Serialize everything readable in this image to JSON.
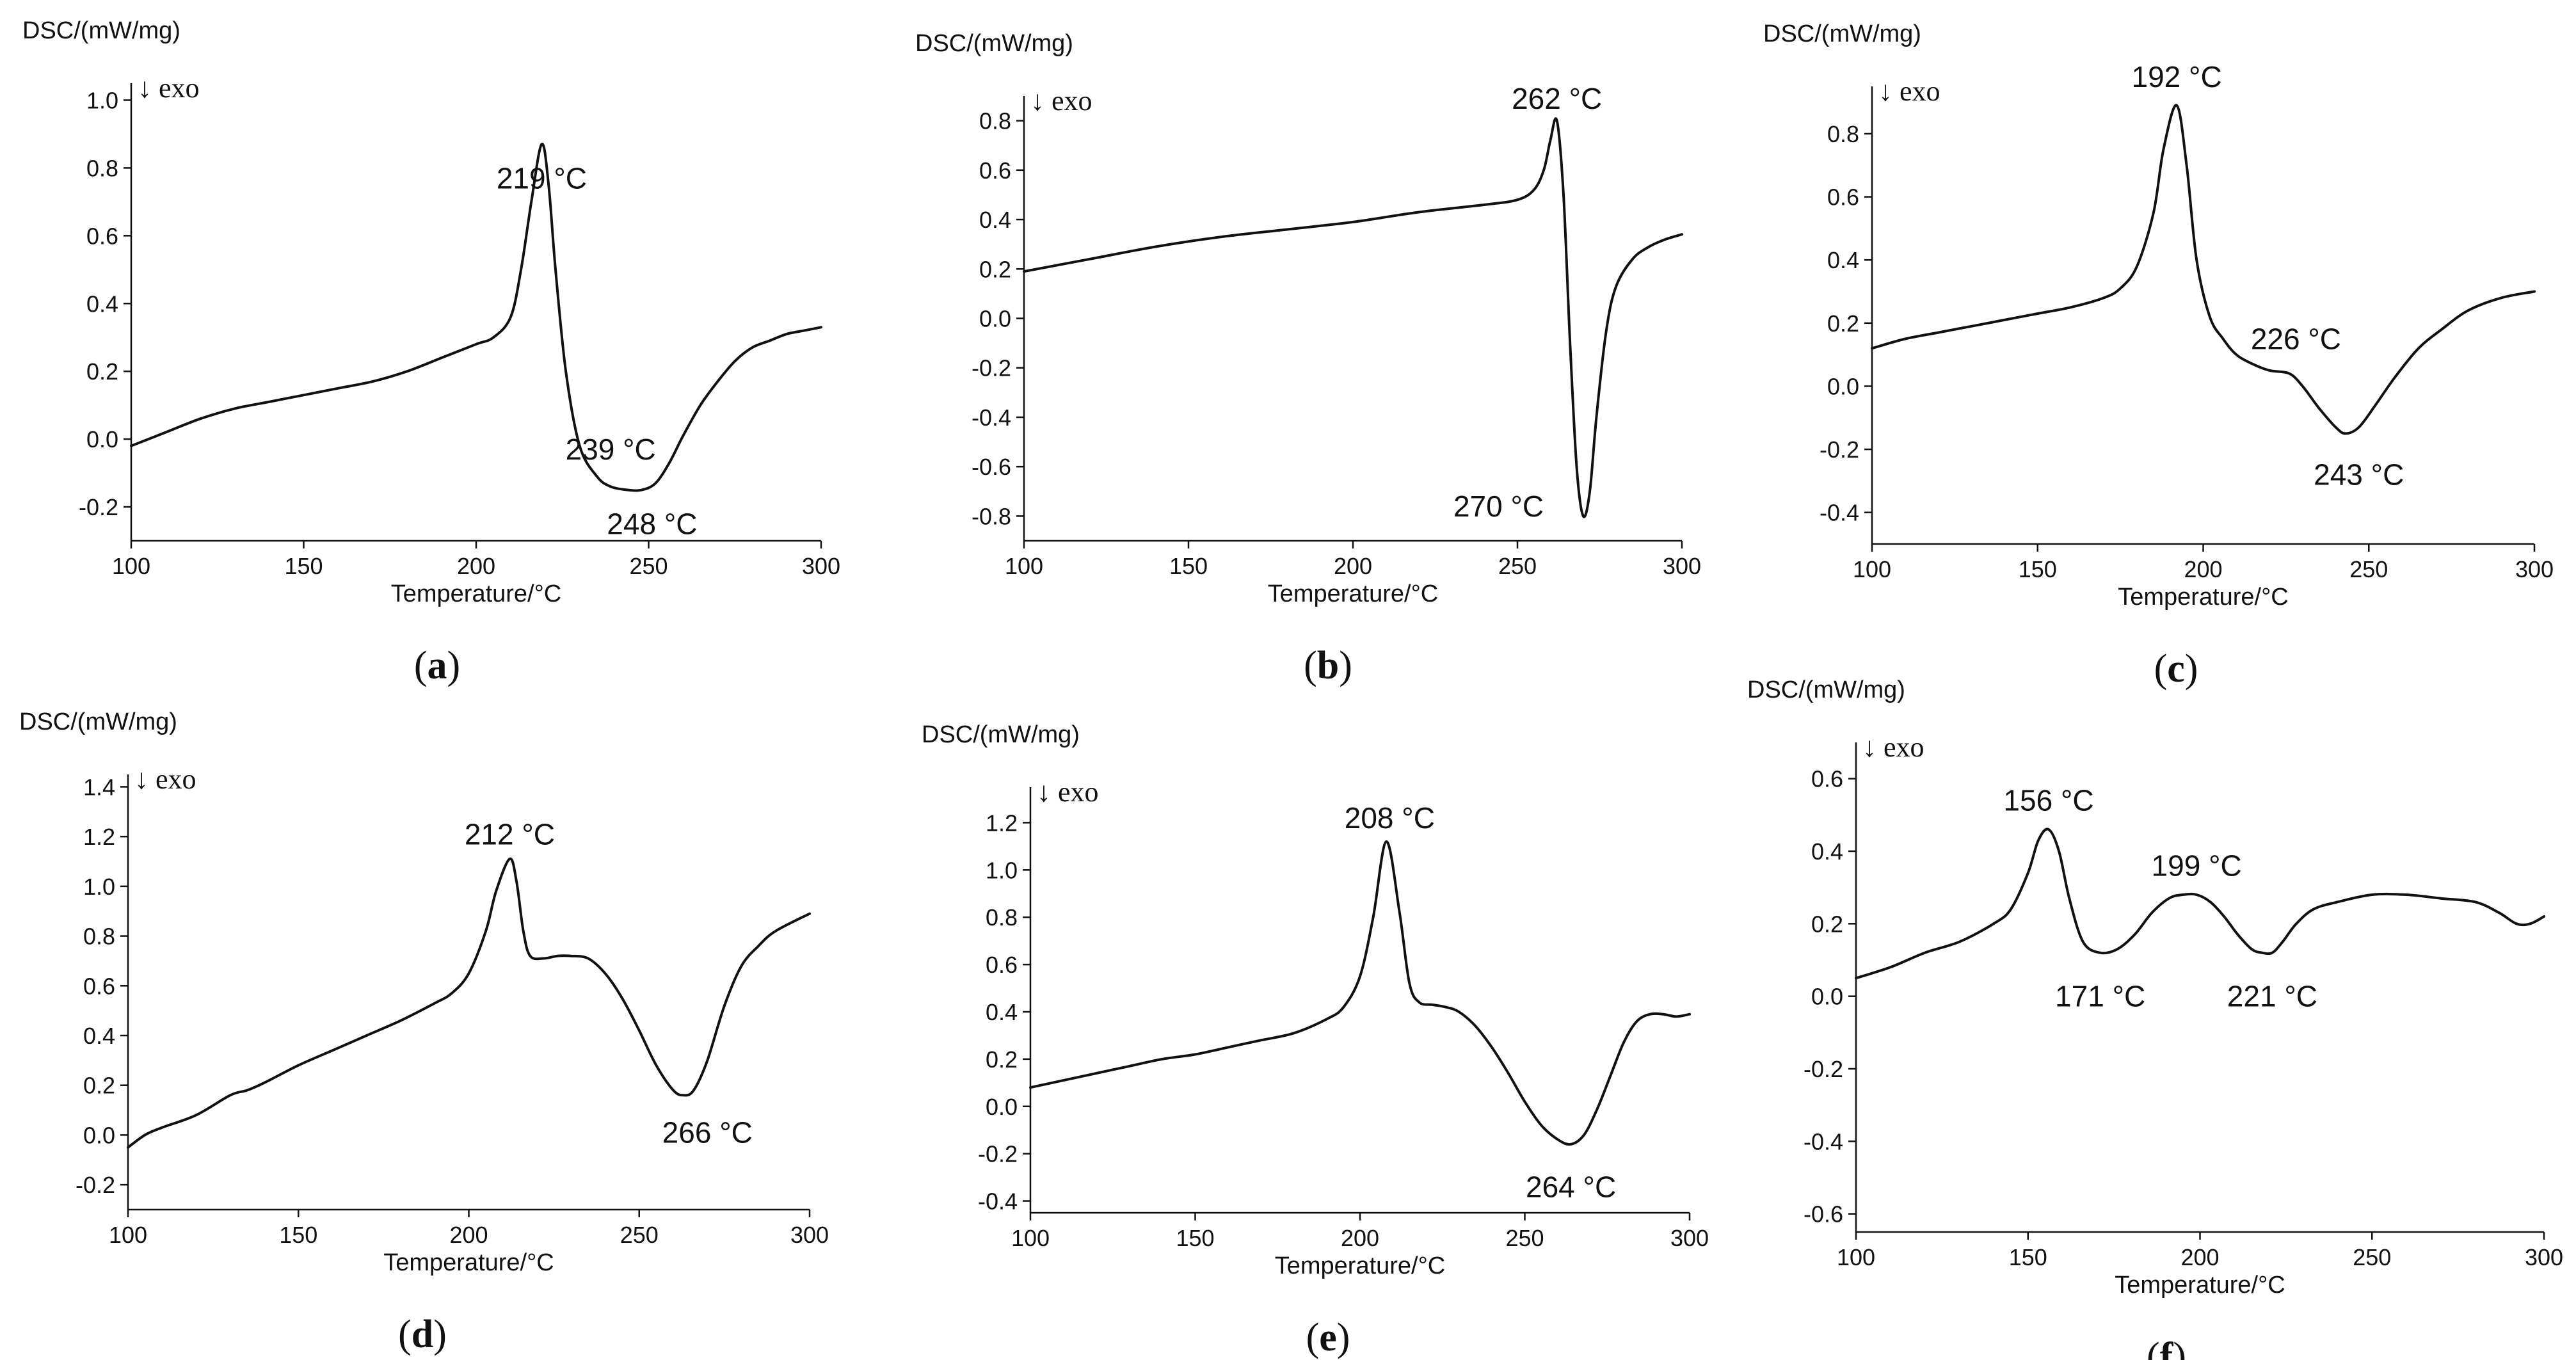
{
  "figure": {
    "ylabel": "DSC/(mW/mg)",
    "xlabel": "Temperature/°C",
    "exo_label": "↓ exo"
  },
  "chart_data": [
    {
      "panel": "a",
      "panel_label": "(a)",
      "type": "line",
      "title": "",
      "xlabel": "Temperature/°C",
      "ylabel": "DSC/(mW/mg)",
      "exo_label": "↓ exo",
      "xlim": [
        100,
        300
      ],
      "ylim": [
        -0.3,
        1.05
      ],
      "xticks": [
        100,
        150,
        200,
        250,
        300
      ],
      "yticks": [
        -0.2,
        0.0,
        0.2,
        0.4,
        0.6,
        0.8,
        1.0
      ],
      "ytick_labels": [
        "-0.2",
        "0.0",
        "0.2",
        "0.4",
        "0.6",
        "0.8",
        "1.0"
      ],
      "series": [
        {
          "name": "DSC",
          "x": [
            100,
            110,
            120,
            130,
            140,
            150,
            160,
            170,
            180,
            190,
            200,
            205,
            210,
            213,
            216,
            219,
            221,
            223,
            226,
            230,
            235,
            239,
            244,
            248,
            252,
            256,
            260,
            265,
            270,
            275,
            280,
            285,
            290,
            295,
            300
          ],
          "y": [
            -0.02,
            0.02,
            0.06,
            0.09,
            0.11,
            0.13,
            0.15,
            0.17,
            0.2,
            0.24,
            0.28,
            0.3,
            0.36,
            0.5,
            0.7,
            0.87,
            0.75,
            0.5,
            0.2,
            -0.02,
            -0.11,
            -0.14,
            -0.15,
            -0.15,
            -0.13,
            -0.07,
            0.01,
            0.1,
            0.17,
            0.23,
            0.27,
            0.29,
            0.31,
            0.32,
            0.33
          ]
        }
      ],
      "annotations": [
        {
          "text": "219 °C",
          "x": 219,
          "y": 0.87,
          "dx": 0,
          "dy": -0.1,
          "anchor": "middle"
        },
        {
          "text": "239 °C",
          "x": 239,
          "y": -0.14,
          "dx": 0,
          "dy": 0.11,
          "anchor": "middle"
        },
        {
          "text": "248 °C",
          "x": 248,
          "y": -0.15,
          "dx": 3,
          "dy": -0.1,
          "anchor": "middle"
        }
      ]
    },
    {
      "panel": "b",
      "panel_label": "(b)",
      "type": "line",
      "title": "",
      "xlabel": "Temperature/°C",
      "ylabel": "DSC/(mW/mg)",
      "exo_label": "↓ exo",
      "xlim": [
        100,
        300
      ],
      "ylim": [
        -0.9,
        0.9
      ],
      "xticks": [
        100,
        150,
        200,
        250,
        300
      ],
      "yticks": [
        -0.8,
        -0.6,
        -0.4,
        -0.2,
        0.0,
        0.2,
        0.4,
        0.6,
        0.8
      ],
      "ytick_labels": [
        "-0.8",
        "-0.6",
        "-0.4",
        "-0.2",
        "0.0",
        "0.2",
        "0.4",
        "0.6",
        "0.8"
      ],
      "series": [
        {
          "name": "DSC",
          "x": [
            100,
            120,
            140,
            160,
            180,
            200,
            220,
            240,
            250,
            255,
            258,
            260,
            262,
            264,
            266,
            268,
            270,
            272,
            274,
            277,
            280,
            285,
            290,
            295,
            300
          ],
          "y": [
            0.19,
            0.24,
            0.29,
            0.33,
            0.36,
            0.39,
            0.43,
            0.46,
            0.48,
            0.52,
            0.6,
            0.72,
            0.8,
            0.5,
            -0.1,
            -0.6,
            -0.8,
            -0.7,
            -0.4,
            -0.05,
            0.13,
            0.24,
            0.29,
            0.32,
            0.34
          ]
        }
      ],
      "annotations": [
        {
          "text": "262 °C",
          "x": 262,
          "y": 0.8,
          "dx": 0,
          "dy": 0.09,
          "anchor": "middle"
        },
        {
          "text": "270 °C",
          "x": 270,
          "y": -0.8,
          "dx": -12,
          "dy": 0.04,
          "anchor": "end"
        }
      ]
    },
    {
      "panel": "c",
      "panel_label": "(c)",
      "type": "line",
      "title": "",
      "xlabel": "Temperature/°C",
      "ylabel": "DSC/(mW/mg)",
      "exo_label": "↓ exo",
      "xlim": [
        100,
        300
      ],
      "ylim": [
        -0.5,
        0.95
      ],
      "xticks": [
        100,
        150,
        200,
        250,
        300
      ],
      "yticks": [
        -0.4,
        -0.2,
        0.0,
        0.2,
        0.4,
        0.6,
        0.8
      ],
      "ytick_labels": [
        "-0.4",
        "-0.2",
        "0.0",
        "0.2",
        "0.4",
        "0.6",
        "0.8"
      ],
      "series": [
        {
          "name": "DSC",
          "x": [
            100,
            110,
            120,
            130,
            140,
            150,
            160,
            170,
            175,
            180,
            185,
            188,
            192,
            195,
            198,
            202,
            206,
            210,
            215,
            220,
            226,
            230,
            235,
            240,
            243,
            247,
            252,
            258,
            265,
            272,
            280,
            290,
            300
          ],
          "y": [
            0.12,
            0.15,
            0.17,
            0.19,
            0.21,
            0.23,
            0.25,
            0.28,
            0.31,
            0.38,
            0.55,
            0.75,
            0.89,
            0.7,
            0.4,
            0.22,
            0.15,
            0.1,
            0.07,
            0.05,
            0.04,
            0.0,
            -0.07,
            -0.13,
            -0.15,
            -0.13,
            -0.06,
            0.03,
            0.12,
            0.18,
            0.24,
            0.28,
            0.3
          ]
        }
      ],
      "annotations": [
        {
          "text": "192 °C",
          "x": 192,
          "y": 0.89,
          "dx": 0,
          "dy": 0.09,
          "anchor": "middle"
        },
        {
          "text": "226 °C",
          "x": 226,
          "y": 0.04,
          "dx": 2,
          "dy": 0.11,
          "anchor": "middle"
        },
        {
          "text": "243 °C",
          "x": 243,
          "y": -0.15,
          "dx": 4,
          "dy": -0.13,
          "anchor": "middle"
        }
      ]
    },
    {
      "panel": "d",
      "panel_label": "(d)",
      "type": "line",
      "title": "",
      "xlabel": "Temperature/°C",
      "ylabel": "DSC/(mW/mg)",
      "exo_label": "↓ exo",
      "xlim": [
        100,
        300
      ],
      "ylim": [
        -0.3,
        1.45
      ],
      "xticks": [
        100,
        150,
        200,
        250,
        300
      ],
      "yticks": [
        -0.2,
        0.0,
        0.2,
        0.4,
        0.6,
        0.8,
        1.0,
        1.2,
        1.4
      ],
      "ytick_labels": [
        "-0.2",
        "0.0",
        "0.2",
        "0.4",
        "0.6",
        "0.8",
        "1.0",
        "1.2",
        "1.4"
      ],
      "series": [
        {
          "name": "DSC",
          "x": [
            100,
            105,
            110,
            120,
            130,
            135,
            140,
            150,
            160,
            170,
            180,
            190,
            195,
            200,
            205,
            208,
            212,
            214,
            216,
            218,
            222,
            226,
            230,
            235,
            240,
            245,
            250,
            255,
            260,
            263,
            266,
            270,
            275,
            280,
            285,
            290,
            300
          ],
          "y": [
            -0.05,
            0.0,
            0.03,
            0.08,
            0.16,
            0.18,
            0.21,
            0.28,
            0.34,
            0.4,
            0.46,
            0.53,
            0.57,
            0.65,
            0.82,
            0.98,
            1.11,
            1.02,
            0.82,
            0.72,
            0.71,
            0.72,
            0.72,
            0.71,
            0.65,
            0.55,
            0.42,
            0.28,
            0.18,
            0.16,
            0.18,
            0.3,
            0.52,
            0.68,
            0.76,
            0.82,
            0.89
          ]
        }
      ],
      "annotations": [
        {
          "text": "212 °C",
          "x": 212,
          "y": 1.11,
          "dx": 0,
          "dy": 0.1,
          "anchor": "middle"
        },
        {
          "text": "266 °C",
          "x": 266,
          "y": 0.16,
          "dx": 4,
          "dy": -0.15,
          "anchor": "middle"
        }
      ]
    },
    {
      "panel": "e",
      "panel_label": "(e)",
      "type": "line",
      "title": "",
      "xlabel": "Temperature/°C",
      "ylabel": "DSC/(mW/mg)",
      "exo_label": "↓ exo",
      "xlim": [
        100,
        300
      ],
      "ylim": [
        -0.45,
        1.35
      ],
      "xticks": [
        100,
        150,
        200,
        250,
        300
      ],
      "yticks": [
        -0.4,
        -0.2,
        0.0,
        0.2,
        0.4,
        0.6,
        0.8,
        1.0,
        1.2
      ],
      "ytick_labels": [
        "-0.4",
        "-0.2",
        "0.0",
        "0.2",
        "0.4",
        "0.6",
        "0.8",
        "1.0",
        "1.2"
      ],
      "series": [
        {
          "name": "DSC",
          "x": [
            100,
            110,
            120,
            130,
            140,
            150,
            160,
            170,
            180,
            190,
            195,
            200,
            204,
            208,
            212,
            215,
            218,
            222,
            226,
            230,
            235,
            240,
            245,
            250,
            255,
            260,
            264,
            268,
            272,
            276,
            280,
            284,
            288,
            292,
            296,
            300
          ],
          "y": [
            0.08,
            0.11,
            0.14,
            0.17,
            0.2,
            0.22,
            0.25,
            0.28,
            0.31,
            0.37,
            0.42,
            0.55,
            0.8,
            1.12,
            0.82,
            0.52,
            0.44,
            0.43,
            0.42,
            0.4,
            0.34,
            0.25,
            0.14,
            0.02,
            -0.08,
            -0.14,
            -0.16,
            -0.12,
            -0.01,
            0.13,
            0.27,
            0.36,
            0.39,
            0.39,
            0.38,
            0.39
          ]
        }
      ],
      "annotations": [
        {
          "text": "208 °C",
          "x": 208,
          "y": 1.12,
          "dx": 1,
          "dy": 0.1,
          "anchor": "middle"
        },
        {
          "text": "264 °C",
          "x": 264,
          "y": -0.16,
          "dx": 0,
          "dy": -0.18,
          "anchor": "middle"
        }
      ]
    },
    {
      "panel": "f",
      "panel_label": "(f)",
      "type": "line",
      "title": "",
      "xlabel": "Temperature/°C",
      "ylabel": "DSC/(mW/mg)",
      "exo_label": "↓ exo",
      "xlim": [
        100,
        300
      ],
      "ylim": [
        -0.65,
        0.7
      ],
      "xticks": [
        100,
        150,
        200,
        250,
        300
      ],
      "yticks": [
        -0.6,
        -0.4,
        -0.2,
        0.0,
        0.2,
        0.4,
        0.6
      ],
      "ytick_labels": [
        "-0.6",
        "-0.4",
        "-0.2",
        "0.0",
        "0.2",
        "0.4",
        "0.6"
      ],
      "series": [
        {
          "name": "DSC",
          "x": [
            100,
            110,
            120,
            130,
            140,
            145,
            150,
            153,
            156,
            159,
            162,
            166,
            171,
            176,
            181,
            186,
            191,
            195,
            199,
            203,
            207,
            211,
            215,
            218,
            221,
            224,
            228,
            233,
            240,
            250,
            260,
            270,
            280,
            287,
            292,
            296,
            300
          ],
          "y": [
            0.05,
            0.08,
            0.12,
            0.15,
            0.2,
            0.24,
            0.34,
            0.43,
            0.46,
            0.4,
            0.27,
            0.15,
            0.12,
            0.13,
            0.17,
            0.23,
            0.27,
            0.28,
            0.28,
            0.26,
            0.22,
            0.17,
            0.13,
            0.12,
            0.12,
            0.15,
            0.2,
            0.24,
            0.26,
            0.28,
            0.28,
            0.27,
            0.26,
            0.23,
            0.2,
            0.2,
            0.22
          ]
        }
      ],
      "annotations": [
        {
          "text": "156 °C",
          "x": 156,
          "y": 0.46,
          "dx": 0,
          "dy": 0.08,
          "anchor": "middle"
        },
        {
          "text": "171 °C",
          "x": 171,
          "y": 0.12,
          "dx": 0,
          "dy": -0.12,
          "anchor": "middle"
        },
        {
          "text": "199 °C",
          "x": 199,
          "y": 0.28,
          "dx": 0,
          "dy": 0.08,
          "anchor": "middle"
        },
        {
          "text": "221 °C",
          "x": 221,
          "y": 0.12,
          "dx": 0,
          "dy": -0.12,
          "anchor": "middle"
        }
      ]
    }
  ]
}
